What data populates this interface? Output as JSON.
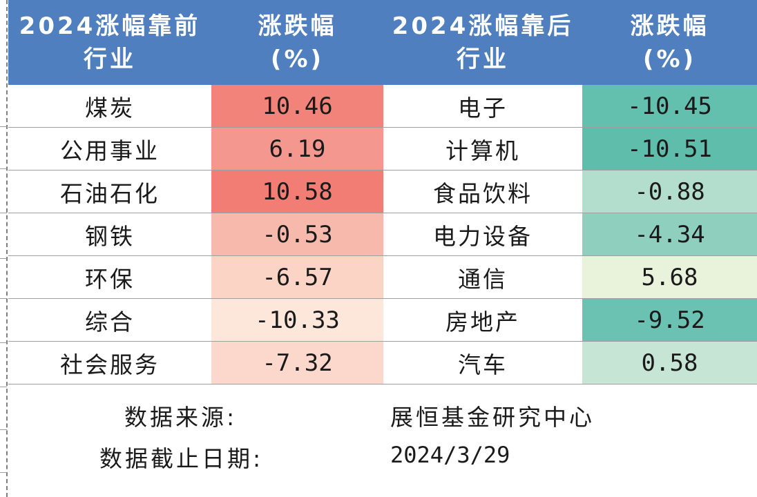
{
  "table": {
    "headers": {
      "top_industry": [
        "2024涨幅靠前",
        "行业"
      ],
      "top_change": [
        "涨跌幅",
        "(%)"
      ],
      "bottom_industry": [
        "2024涨幅靠后",
        "行业"
      ],
      "bottom_change": [
        "涨跌幅",
        "(%)"
      ]
    },
    "rows": [
      {
        "top_name": "煤炭",
        "top_value": "10.46",
        "bottom_name": "电子",
        "bottom_value": "-10.45"
      },
      {
        "top_name": "公用事业",
        "top_value": "6.19",
        "bottom_name": "计算机",
        "bottom_value": "-10.51"
      },
      {
        "top_name": "石油石化",
        "top_value": "10.58",
        "bottom_name": "食品饮料",
        "bottom_value": "-0.88"
      },
      {
        "top_name": "钢铁",
        "top_value": "-0.53",
        "bottom_name": "电力设备",
        "bottom_value": "-4.34"
      },
      {
        "top_name": "环保",
        "top_value": "-6.57",
        "bottom_name": "通信",
        "bottom_value": "5.68"
      },
      {
        "top_name": "综合",
        "top_value": "-10.33",
        "bottom_name": "房地产",
        "bottom_value": "-9.52"
      },
      {
        "top_name": "社会服务",
        "top_value": "-7.32",
        "bottom_name": "汽车",
        "bottom_value": "0.58"
      }
    ],
    "cell_colors": {
      "top_values": [
        "#f2837a",
        "#f4978f",
        "#f27d74",
        "#f8b9ad",
        "#fcd4c6",
        "#fde6da",
        "#fbd8cb"
      ],
      "bottom_values": [
        "#63bfae",
        "#5fbdab",
        "#b3ddcd",
        "#8fcfbe",
        "#e9f3dc",
        "#6cc2b2",
        "#c6e5d4"
      ]
    },
    "header_color": "#4f7fbf"
  },
  "footer": {
    "source_label": "数据来源:",
    "source_value": "展恒基金研究中心",
    "date_label": "数据截止日期:",
    "date_value": "2024/3/29"
  }
}
